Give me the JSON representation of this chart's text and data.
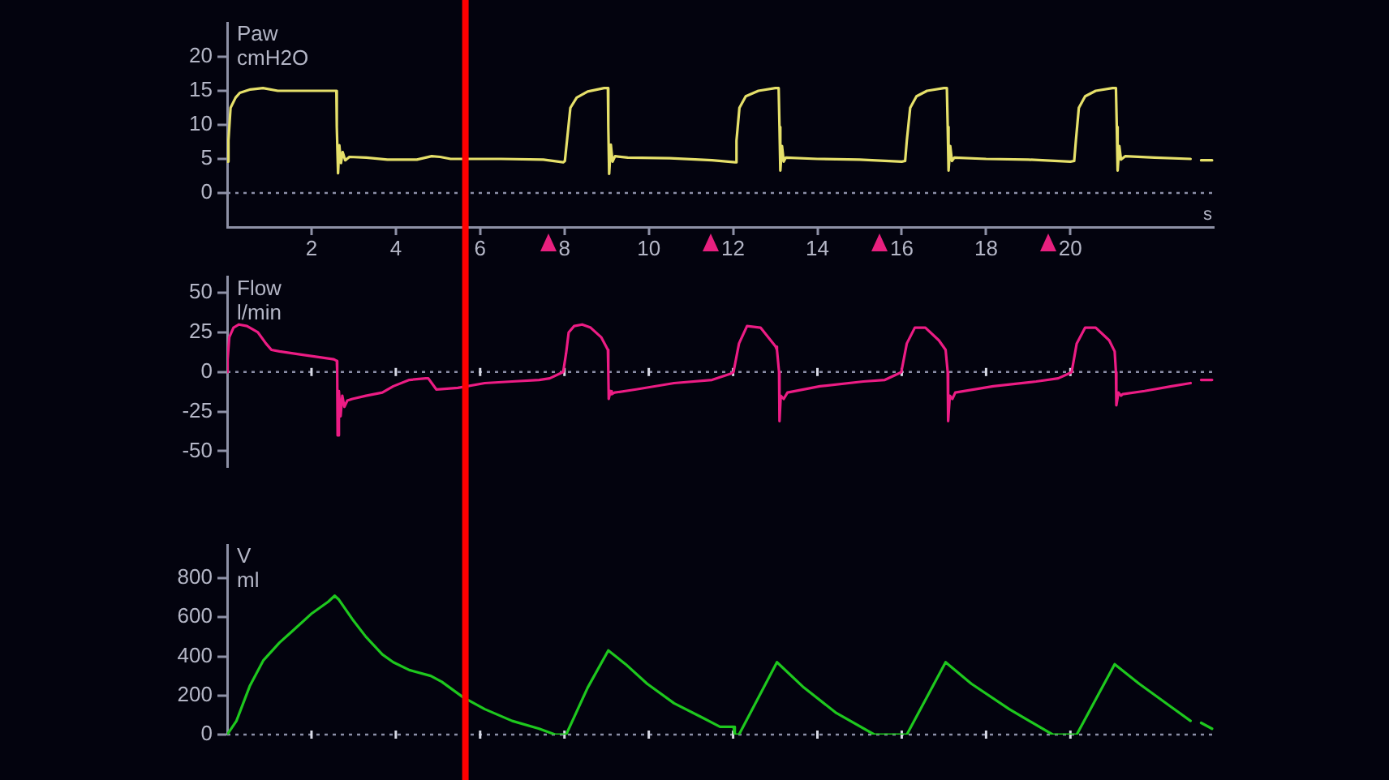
{
  "chart_data": [
    {
      "type": "line",
      "title": "Paw",
      "ylabel": "cmH2O",
      "xlabel": "s",
      "xlim": [
        0,
        23.4
      ],
      "xticks": [
        2,
        4,
        6,
        8,
        10,
        12,
        14,
        16,
        18,
        20
      ],
      "ylim": [
        -5,
        25
      ],
      "yticks": [
        0,
        5,
        10,
        15,
        20
      ],
      "x": [
        0,
        0.03,
        0.08,
        0.2,
        0.3,
        0.55,
        0.85,
        1.2,
        1.8,
        2.59,
        2.6,
        2.63,
        2.66,
        2.7,
        2.74,
        2.8,
        2.9,
        3.3,
        3.8,
        4.5,
        4.85,
        5.05,
        5.3,
        6.5,
        7.5,
        7.97,
        8.01,
        8.06,
        8.14,
        8.29,
        8.55,
        8.94,
        9.03,
        9.04,
        9.06,
        9.1,
        9.14,
        9.2,
        9.5,
        10.5,
        11.5,
        12.05,
        12.08,
        12.15,
        12.3,
        12.6,
        13,
        13.08,
        13.1,
        13.12,
        13.16,
        13.2,
        13.25,
        14,
        15,
        16,
        16.08,
        16.12,
        16.2,
        16.35,
        16.6,
        17,
        17.07,
        17.09,
        17.11,
        17.15,
        17.19,
        17.25,
        18,
        19,
        20,
        20.09,
        20.13,
        20.2,
        20.35,
        20.6,
        21,
        21.08,
        21.1,
        21.12,
        21.16,
        21.2,
        21.3,
        22,
        22.85,
        22.97,
        23.1,
        23.36
      ],
      "series": [
        {
          "color": "#e6e06a",
          "values": [
            4.6,
            7.7,
            12.5,
            14,
            14.7,
            15.2,
            15.4,
            15,
            15,
            15,
            9.7,
            2.9,
            7,
            4.4,
            6,
            4.8,
            5.3,
            5.2,
            4.9,
            4.9,
            5.4,
            5.3,
            5,
            5,
            4.9,
            4.5,
            4.7,
            7.7,
            12.5,
            14,
            14.9,
            15.4,
            15.4,
            9.7,
            2.8,
            7.1,
            4.6,
            5.4,
            5.2,
            5.1,
            4.8,
            4.5,
            7.7,
            12.5,
            14.2,
            15,
            15.4,
            15.4,
            9.7,
            3.3,
            6.9,
            4.6,
            5.2,
            5,
            4.9,
            4.6,
            4.7,
            7.7,
            12.5,
            14.2,
            15,
            15.4,
            15.4,
            9.7,
            3.3,
            6.9,
            4.7,
            5.2,
            5,
            4.9,
            4.6,
            4.7,
            7.7,
            12.5,
            14.2,
            15,
            15.4,
            15.4,
            9.7,
            3.3,
            6.9,
            4.9,
            5.4,
            5.2,
            5,
            null,
            4.8,
            4.8
          ]
        }
      ],
      "ref_lines": [
        {
          "axis": "y",
          "value": 0,
          "line_style": "dotted",
          "color": "#8c8fa8"
        },
        {
          "axis": "x",
          "value": 5.65,
          "color": "#ff0000"
        }
      ]
    },
    {
      "type": "line",
      "title": "Flow",
      "ylabel": "l/min",
      "xlim": [
        0,
        23.4
      ],
      "xticks": [
        2,
        4,
        6,
        8,
        10,
        12,
        14,
        16,
        18,
        20
      ],
      "ylim": [
        -60,
        60
      ],
      "yticks": [
        -50,
        -25,
        0,
        25,
        50
      ],
      "tick_labels": "y",
      "x": [
        0,
        0.01,
        0.05,
        0.15,
        0.28,
        0.47,
        0.73,
        0.92,
        1.05,
        1.24,
        1.76,
        2.53,
        2.6,
        2.61,
        2.62,
        2.65,
        2.69,
        2.73,
        2.78,
        2.85,
        2.97,
        3.29,
        3.68,
        3.94,
        4.32,
        4.71,
        4.77,
        4.96,
        5.47,
        6.11,
        6.76,
        7.4,
        7.65,
        7.97,
        8.04,
        8.1,
        8.23,
        8.42,
        8.62,
        8.87,
        9.03,
        9.04,
        9.05,
        9.09,
        9.12,
        9.19,
        9.7,
        10.6,
        11.5,
        11.95,
        12.01,
        12.14,
        12.33,
        12.65,
        13.01,
        13.04,
        13.09,
        13.1,
        13.13,
        13.2,
        13.29,
        14.06,
        15.09,
        15.6,
        15.92,
        15.99,
        16.12,
        16.31,
        16.56,
        16.88,
        17.04,
        17.09,
        17.1,
        17.14,
        17.2,
        17.27,
        18.17,
        19.19,
        19.71,
        19.96,
        20.03,
        20.15,
        20.35,
        20.6,
        20.92,
        21.05,
        21.08,
        21.09,
        21.14,
        21.2,
        21.24,
        21.76,
        22.4,
        22.85,
        22.97,
        23.1,
        23.36
      ],
      "series": [
        {
          "color": "#ec1c84",
          "values": [
            0,
            8,
            22,
            28,
            30,
            29,
            25,
            18,
            14,
            13,
            11,
            8,
            7,
            0,
            -40,
            -12,
            -28,
            -15,
            -22,
            -18,
            -17,
            -15,
            -13,
            -9,
            -5,
            -4,
            -4,
            -11,
            -10,
            -7,
            -6,
            -5,
            -4,
            0,
            12,
            25,
            29,
            30,
            28,
            22,
            14,
            0,
            -17,
            -12,
            -14,
            -13,
            -11,
            -7,
            -5,
            -1,
            0,
            18,
            29,
            28,
            16,
            14,
            0,
            -31,
            -15,
            -17,
            -13,
            -9,
            -6,
            -5,
            -1,
            0,
            18,
            28,
            28,
            20,
            14,
            0,
            -31,
            -15,
            -17,
            -13,
            -9,
            -6,
            -4,
            -1,
            0,
            18,
            28,
            28,
            20,
            13,
            0,
            -21,
            -13,
            -15,
            -14,
            -12,
            -9,
            -7,
            null,
            -5,
            -5
          ]
        }
      ],
      "ref_lines": [
        {
          "axis": "y",
          "value": 0,
          "line_style": "dotted",
          "color": "#8c8fa8"
        },
        {
          "axis": "x",
          "value": 5.65,
          "color": "#ff0000"
        }
      ]
    },
    {
      "type": "line",
      "title": "V",
      "ylabel": "ml",
      "xlim": [
        0,
        23.4
      ],
      "xticks": [
        2,
        4,
        6,
        8,
        10,
        12,
        14,
        16,
        18,
        20
      ],
      "ylim": [
        0,
        970
      ],
      "yticks": [
        0,
        200,
        400,
        600,
        800
      ],
      "tick_labels": "y",
      "x": [
        0,
        0.03,
        0.22,
        0.54,
        0.86,
        1.24,
        1.5,
        2.01,
        2.4,
        2.55,
        2.65,
        2.97,
        3.29,
        3.68,
        3.94,
        4.32,
        4.83,
        5.09,
        5.6,
        6.11,
        6.76,
        7.4,
        7.78,
        8.04,
        8.55,
        9.04,
        9.45,
        9.96,
        10.6,
        11.24,
        11.69,
        12.01,
        12.04,
        12.14,
        13.04,
        13.68,
        14.45,
        15.35,
        16.12,
        17.04,
        17.65,
        18.55,
        19.58,
        20.15,
        21.05,
        21.63,
        22.4,
        22.85,
        22.97,
        23.1,
        23.36
      ],
      "series": [
        {
          "color": "#1ec81e",
          "values": [
            0,
            0,
            70,
            250,
            380,
            470,
            520,
            620,
            680,
            710,
            690,
            590,
            500,
            410,
            370,
            330,
            300,
            270,
            190,
            130,
            70,
            30,
            0,
            0,
            240,
            430,
            360,
            260,
            160,
            90,
            40,
            40,
            0,
            0,
            370,
            240,
            110,
            0,
            0,
            370,
            260,
            130,
            0,
            0,
            360,
            260,
            140,
            70,
            null,
            60,
            30
          ]
        }
      ],
      "ref_lines": [
        {
          "axis": "y",
          "value": 0,
          "line_style": "dotted",
          "color": "#8c8fa8"
        },
        {
          "axis": "x",
          "value": 5.65,
          "color": "#ff0000"
        }
      ]
    }
  ]
}
